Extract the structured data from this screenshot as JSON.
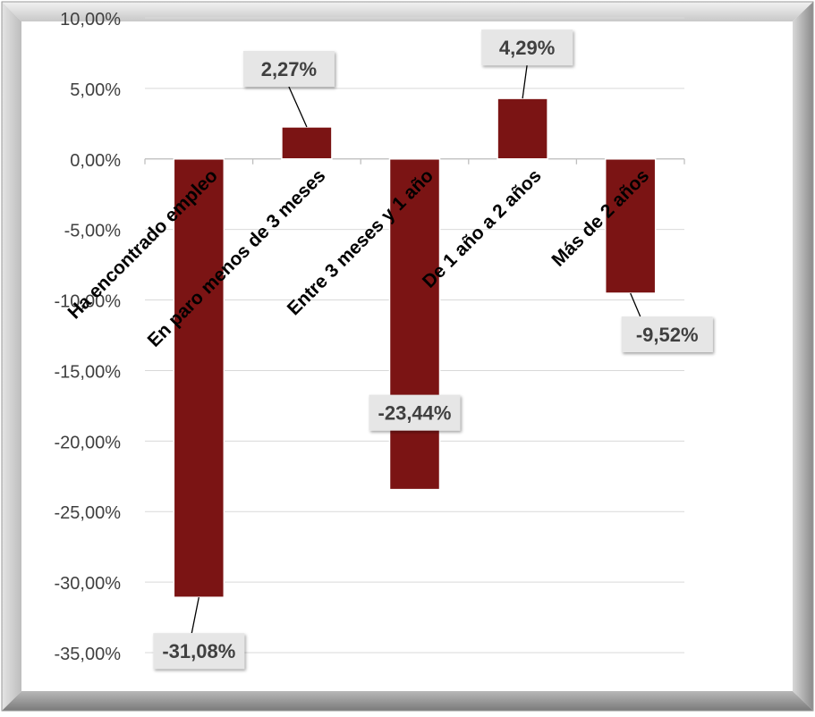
{
  "chart_data": {
    "type": "bar",
    "title": "",
    "xlabel": "",
    "ylabel": "",
    "ylim": [
      -35,
      10
    ],
    "yticks": [
      10,
      5,
      0,
      -5,
      -10,
      -15,
      -20,
      -25,
      -30,
      -35
    ],
    "ytick_labels": [
      "10,00%",
      "5,00%",
      "0,00%",
      "-5,00%",
      "-10,00%",
      "-15,00%",
      "-20,00%",
      "-25,00%",
      "-30,00%",
      "-35,00%"
    ],
    "categories": [
      "Ha encontrado empleo",
      "En paro menos de 3 meses",
      "Entre 3 meses y 1 año",
      "De 1 año a 2 años",
      "Más de 2 años"
    ],
    "values": [
      -31.08,
      2.27,
      -23.44,
      4.29,
      -9.52
    ],
    "data_labels": [
      "-31,08%",
      "2,27%",
      "-23,44%",
      "4,29%",
      "-9,52%"
    ],
    "grid": true,
    "legend": "none",
    "colors": {
      "bar": "#7b1414",
      "grid": "#d9d9d9",
      "label_box": "#e6e6e6",
      "text": "#404040"
    }
  }
}
